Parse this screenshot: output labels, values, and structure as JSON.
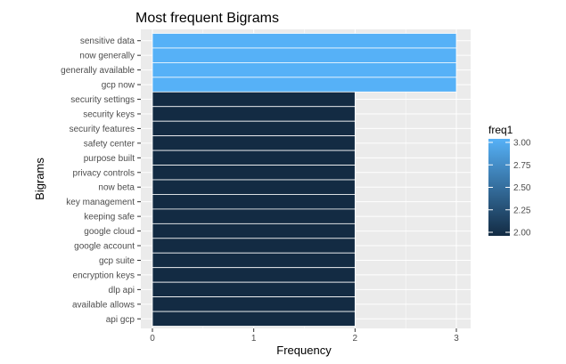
{
  "chart_data": {
    "type": "bar",
    "orientation": "horizontal",
    "title": "Most frequent Bigrams",
    "xlabel": "Frequency",
    "ylabel": "Bigrams",
    "xlim": [
      0,
      3
    ],
    "x_ticks": [
      0,
      1,
      2,
      3
    ],
    "grid": true,
    "categories": [
      "sensitive data",
      "now generally",
      "generally available",
      "gcp now",
      "security settings",
      "security keys",
      "security features",
      "safety center",
      "purpose built",
      "privacy controls",
      "now beta",
      "key management",
      "keeping safe",
      "google cloud",
      "google account",
      "gcp suite",
      "encryption keys",
      "dlp api",
      "available allows",
      "api gcp"
    ],
    "values": [
      3,
      3,
      3,
      3,
      2,
      2,
      2,
      2,
      2,
      2,
      2,
      2,
      2,
      2,
      2,
      2,
      2,
      2,
      2,
      2
    ],
    "fill_by": "freq1",
    "legend": {
      "title": "freq1",
      "placement": "right",
      "ticks": [
        "3.00",
        "2.75",
        "2.50",
        "2.25",
        "2.00"
      ],
      "range": [
        2,
        3
      ],
      "low_color": "#132b43",
      "high_color": "#56b1f7"
    },
    "colors": {
      "panel_background": "#ebebeb",
      "grid": "#ffffff",
      "bar_outline": "#ffffff"
    }
  }
}
